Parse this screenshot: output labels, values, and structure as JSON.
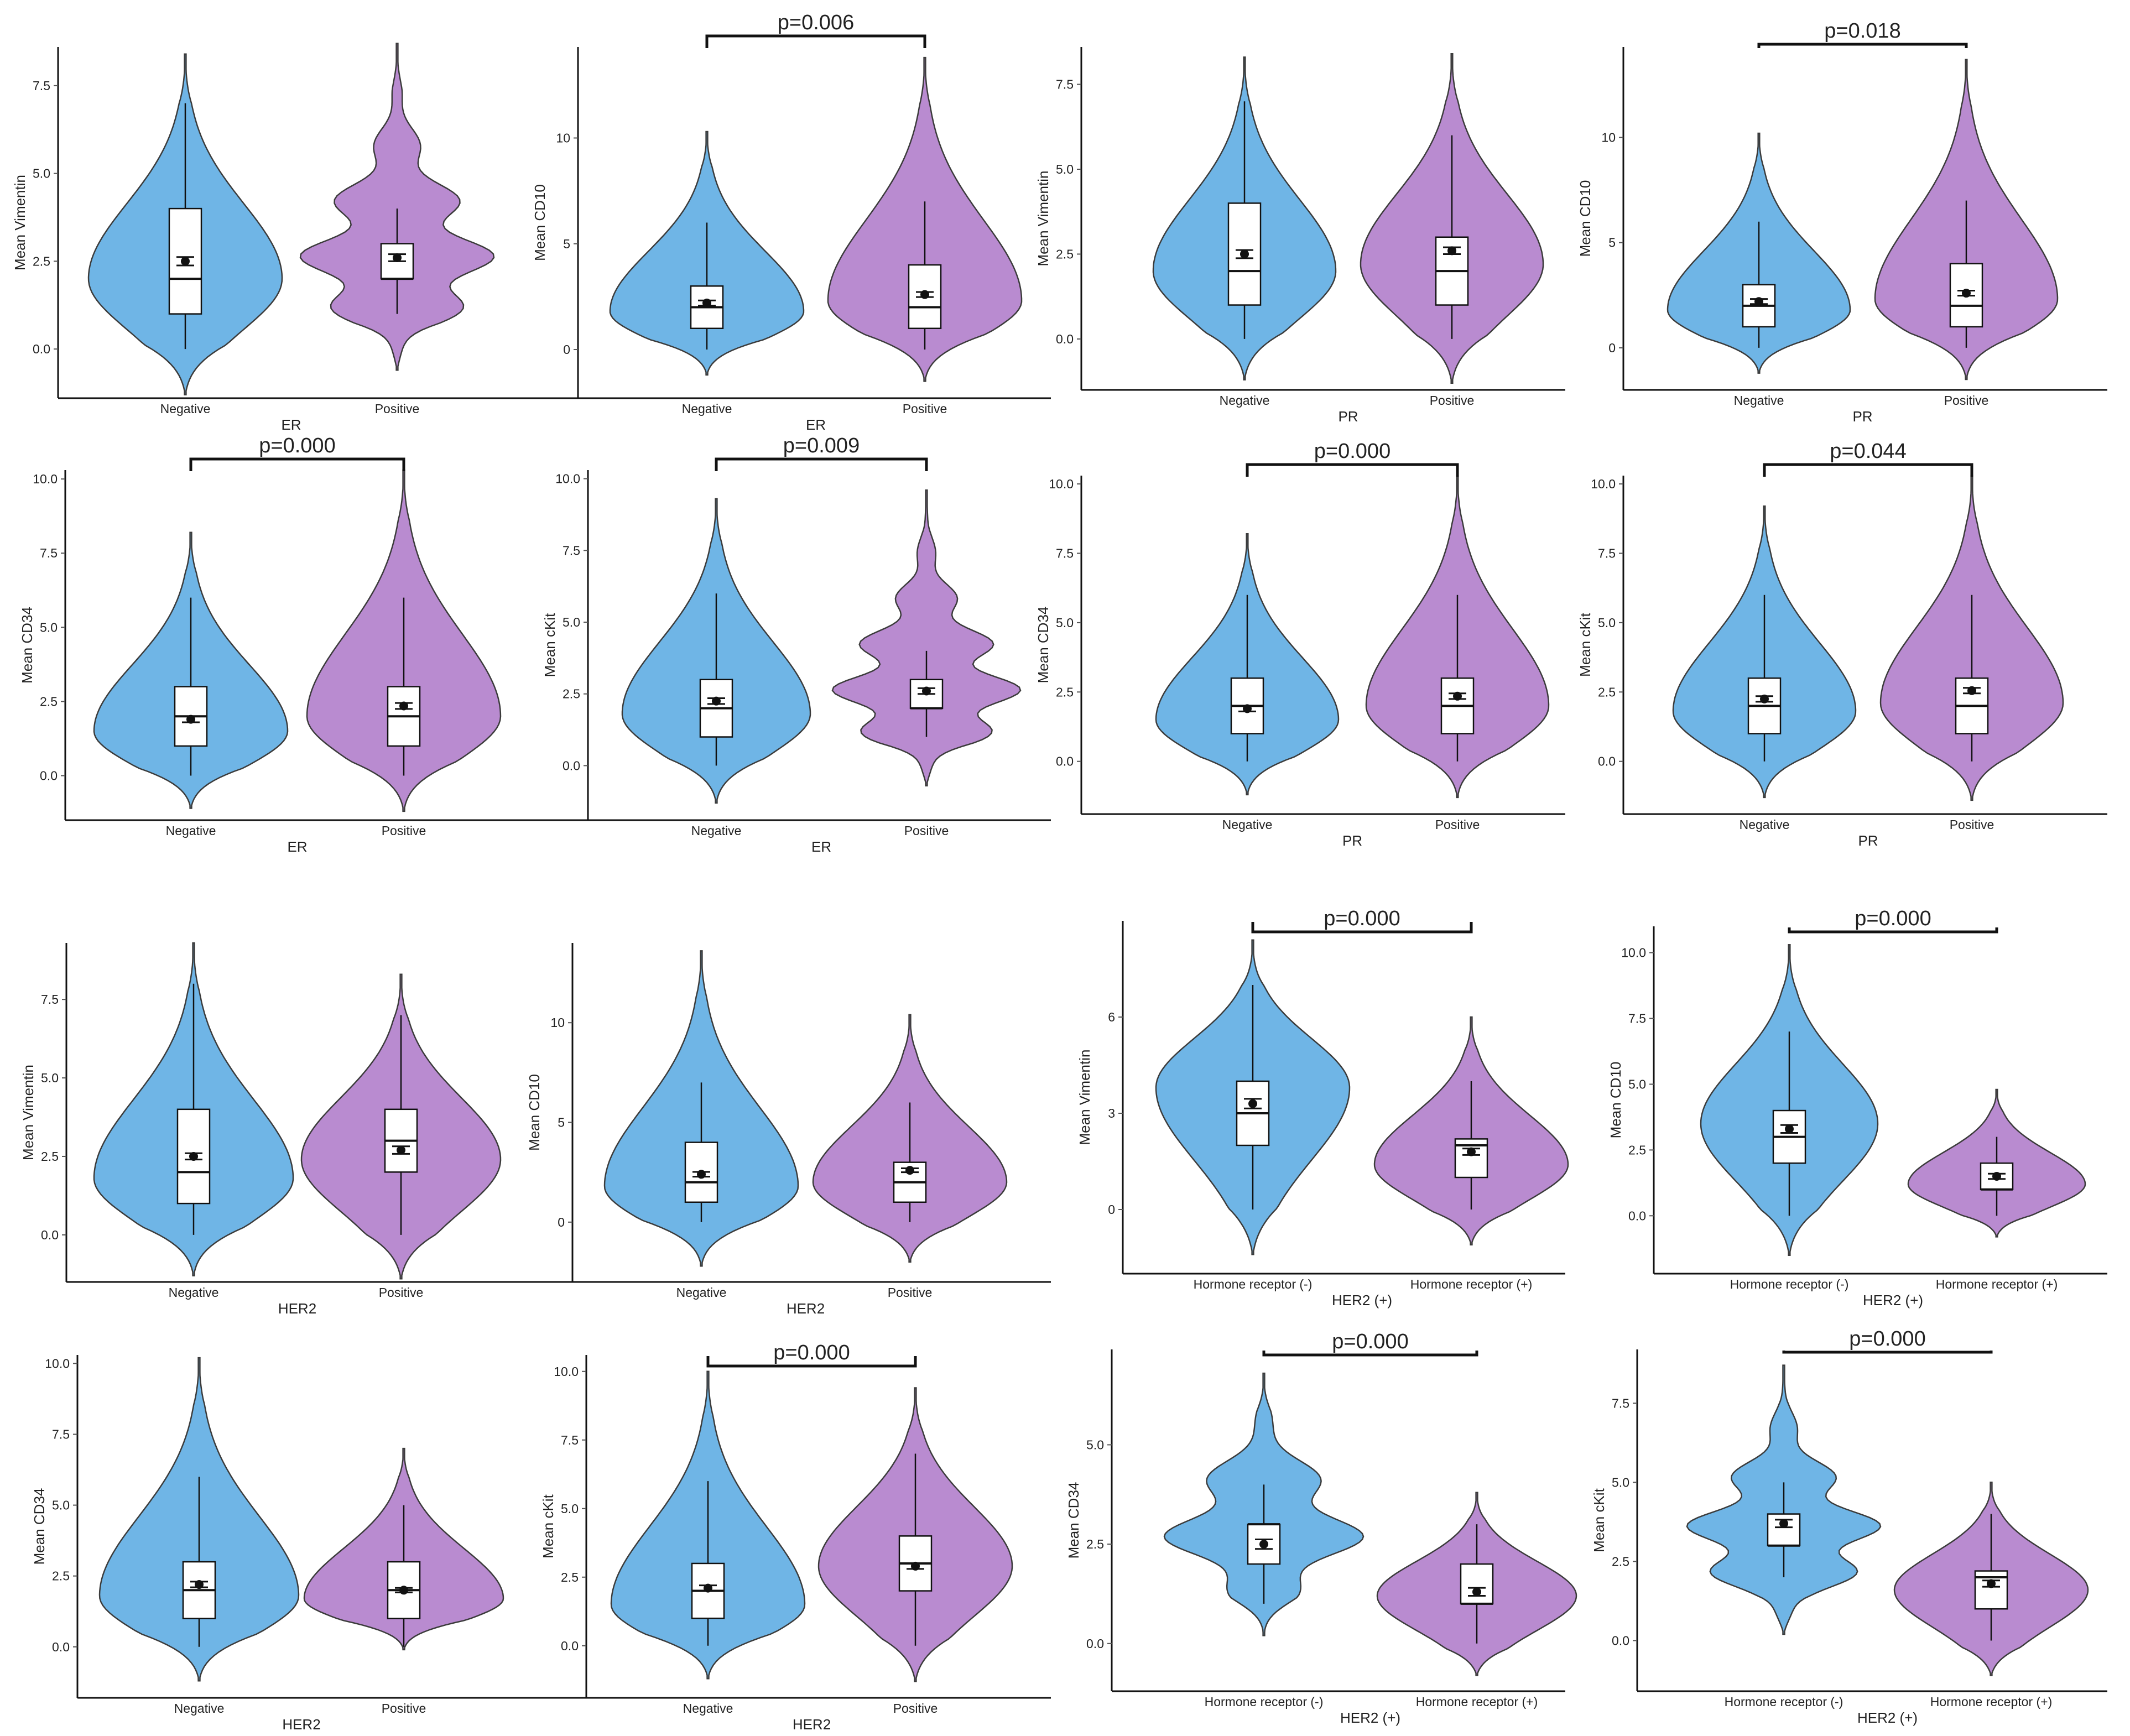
{
  "colors": {
    "negative": "#6fb5e6",
    "positive": "#b98bd0"
  },
  "chart_data": [
    {
      "type": "violin",
      "xlabel": "ER",
      "ylabel": "Mean Vimentin",
      "yticks": [
        0,
        2.5,
        5,
        7.5
      ],
      "ytick_labels": [
        "0.0",
        "2.5",
        "5.0",
        "7.5"
      ],
      "ylim": [
        -1.4,
        8.6
      ],
      "p_value": "",
      "groups": [
        {
          "name": "Negative",
          "color": "#6fb5e6",
          "min": 0,
          "q1": 1,
          "median": 2,
          "q3": 4,
          "max": 7,
          "mean": 2.5,
          "se": 0.12,
          "shape": "smooth",
          "vlow": -1.3,
          "vhigh": 8.4,
          "vmode": 2.0
        },
        {
          "name": "Positive",
          "color": "#b98bd0",
          "min": 1,
          "q1": 2,
          "median": 2,
          "q3": 3,
          "max": 4,
          "mean": 2.6,
          "se": 0.1,
          "shape": "wavy",
          "vlow": -0.6,
          "vhigh": 8.7,
          "vmode": 2.2
        }
      ]
    },
    {
      "type": "violin",
      "xlabel": "ER",
      "ylabel": "Mean CD10",
      "yticks": [
        0,
        5,
        10
      ],
      "ytick_labels": [
        "0",
        "5",
        "10"
      ],
      "ylim": [
        -2.3,
        14.3
      ],
      "p_value": "p=0.006",
      "groups": [
        {
          "name": "Negative",
          "color": "#6fb5e6",
          "min": 0,
          "q1": 1,
          "median": 2,
          "q3": 3,
          "max": 6,
          "mean": 2.2,
          "se": 0.12,
          "shape": "smooth",
          "vlow": -1.2,
          "vhigh": 10.3,
          "vmode": 1.8
        },
        {
          "name": "Positive",
          "color": "#b98bd0",
          "min": 0,
          "q1": 1,
          "median": 2,
          "q3": 4,
          "max": 7,
          "mean": 2.6,
          "se": 0.12,
          "shape": "smooth",
          "vlow": -1.5,
          "vhigh": 13.8,
          "vmode": 2.3
        }
      ]
    },
    {
      "type": "violin",
      "xlabel": "PR",
      "ylabel": "Mean Vimentin",
      "yticks": [
        0,
        2.5,
        5,
        7.5
      ],
      "ytick_labels": [
        "0.0",
        "2.5",
        "5.0",
        "7.5"
      ],
      "ylim": [
        -1.5,
        8.6
      ],
      "p_value": "",
      "groups": [
        {
          "name": "Negative",
          "color": "#6fb5e6",
          "min": 0,
          "q1": 1,
          "median": 2,
          "q3": 4,
          "max": 7,
          "mean": 2.5,
          "se": 0.12,
          "shape": "smooth",
          "vlow": -1.2,
          "vhigh": 8.3,
          "vmode": 2.0
        },
        {
          "name": "Positive",
          "color": "#b98bd0",
          "min": 0,
          "q1": 1,
          "median": 2,
          "q3": 3,
          "max": 6,
          "mean": 2.6,
          "se": 0.1,
          "shape": "smooth",
          "vlow": -1.3,
          "vhigh": 8.4,
          "vmode": 2.2
        }
      ]
    },
    {
      "type": "violin",
      "xlabel": "PR",
      "ylabel": "Mean CD10",
      "yticks": [
        0,
        5,
        10
      ],
      "ytick_labels": [
        "0",
        "5",
        "10"
      ],
      "ylim": [
        -2.0,
        14.3
      ],
      "p_value": "p=0.018",
      "groups": [
        {
          "name": "Negative",
          "color": "#6fb5e6",
          "min": 0,
          "q1": 1,
          "median": 2,
          "q3": 3,
          "max": 6,
          "mean": 2.2,
          "se": 0.12,
          "shape": "smooth",
          "vlow": -1.2,
          "vhigh": 10.2,
          "vmode": 1.8
        },
        {
          "name": "Positive",
          "color": "#b98bd0",
          "min": 0,
          "q1": 1,
          "median": 2,
          "q3": 4,
          "max": 7,
          "mean": 2.6,
          "se": 0.12,
          "shape": "smooth",
          "vlow": -1.5,
          "vhigh": 13.7,
          "vmode": 2.3
        }
      ]
    },
    {
      "type": "violin",
      "xlabel": "ER",
      "ylabel": "Mean CD34",
      "yticks": [
        0,
        2.5,
        5,
        7.5,
        10
      ],
      "ytick_labels": [
        "0.0",
        "2.5",
        "5.0",
        "7.5",
        "10.0"
      ],
      "ylim": [
        -1.5,
        10.3
      ],
      "p_value": "p=0.000",
      "groups": [
        {
          "name": "Negative",
          "color": "#6fb5e6",
          "min": 0,
          "q1": 1,
          "median": 2,
          "q3": 3,
          "max": 6,
          "mean": 1.9,
          "se": 0.1,
          "shape": "smooth",
          "vlow": -1.1,
          "vhigh": 8.2,
          "vmode": 1.5
        },
        {
          "name": "Positive",
          "color": "#b98bd0",
          "min": 0,
          "q1": 1,
          "median": 2,
          "q3": 3,
          "max": 6,
          "mean": 2.35,
          "se": 0.1,
          "shape": "smooth",
          "vlow": -1.2,
          "vhigh": 10.3,
          "vmode": 2.0
        }
      ]
    },
    {
      "type": "violin",
      "xlabel": "ER",
      "ylabel": "Mean cKit",
      "yticks": [
        0,
        2.5,
        5,
        7.5,
        10
      ],
      "ytick_labels": [
        "0.0",
        "2.5",
        "5.0",
        "7.5",
        "10.0"
      ],
      "ylim": [
        -1.9,
        10.3
      ],
      "p_value": "p=0.009",
      "groups": [
        {
          "name": "Negative",
          "color": "#6fb5e6",
          "min": 0,
          "q1": 1,
          "median": 2,
          "q3": 3,
          "max": 6,
          "mean": 2.25,
          "se": 0.1,
          "shape": "smooth",
          "vlow": -1.3,
          "vhigh": 9.3,
          "vmode": 1.8
        },
        {
          "name": "Positive",
          "color": "#b98bd0",
          "min": 1,
          "q1": 2,
          "median": 2,
          "q3": 3,
          "max": 4,
          "mean": 2.6,
          "se": 0.1,
          "shape": "wavy",
          "vlow": -0.7,
          "vhigh": 9.6,
          "vmode": 2.2
        }
      ]
    },
    {
      "type": "violin",
      "xlabel": "PR",
      "ylabel": "Mean CD34",
      "yticks": [
        0,
        2.5,
        5,
        7.5,
        10
      ],
      "ytick_labels": [
        "0.0",
        "2.5",
        "5.0",
        "7.5",
        "10.0"
      ],
      "ylim": [
        -1.9,
        10.3
      ],
      "p_value": "p=0.000",
      "groups": [
        {
          "name": "Negative",
          "color": "#6fb5e6",
          "min": 0,
          "q1": 1,
          "median": 2,
          "q3": 3,
          "max": 6,
          "mean": 1.9,
          "se": 0.1,
          "shape": "smooth",
          "vlow": -1.2,
          "vhigh": 8.2,
          "vmode": 1.5
        },
        {
          "name": "Positive",
          "color": "#b98bd0",
          "min": 0,
          "q1": 1,
          "median": 2,
          "q3": 3,
          "max": 6,
          "mean": 2.35,
          "se": 0.1,
          "shape": "smooth",
          "vlow": -1.3,
          "vhigh": 10.3,
          "vmode": 2.0
        }
      ]
    },
    {
      "type": "violin",
      "xlabel": "PR",
      "ylabel": "Mean cKit",
      "yticks": [
        0,
        2.5,
        5,
        7.5,
        10
      ],
      "ytick_labels": [
        "0.0",
        "2.5",
        "5.0",
        "7.5",
        "10.0"
      ],
      "ylim": [
        -1.9,
        10.3
      ],
      "p_value": "p=0.044",
      "groups": [
        {
          "name": "Negative",
          "color": "#6fb5e6",
          "min": 0,
          "q1": 1,
          "median": 2,
          "q3": 3,
          "max": 6,
          "mean": 2.25,
          "se": 0.1,
          "shape": "smooth",
          "vlow": -1.3,
          "vhigh": 9.2,
          "vmode": 1.8
        },
        {
          "name": "Positive",
          "color": "#b98bd0",
          "min": 0,
          "q1": 1,
          "median": 2,
          "q3": 3,
          "max": 6,
          "mean": 2.55,
          "se": 0.1,
          "shape": "smooth",
          "vlow": -1.4,
          "vhigh": 10.3,
          "vmode": 2.1
        }
      ]
    },
    {
      "type": "violin",
      "xlabel": "HER2",
      "ylabel": "Mean Vimentin",
      "yticks": [
        0,
        2.5,
        5,
        7.5
      ],
      "ytick_labels": [
        "0.0",
        "2.5",
        "5.0",
        "7.5"
      ],
      "ylim": [
        -1.5,
        9.3
      ],
      "p_value": "",
      "groups": [
        {
          "name": "Negative",
          "color": "#6fb5e6",
          "min": 0,
          "q1": 1,
          "median": 2,
          "q3": 4,
          "max": 8,
          "mean": 2.5,
          "se": 0.1,
          "shape": "smooth",
          "vlow": -1.3,
          "vhigh": 9.3,
          "vmode": 1.8
        },
        {
          "name": "Positive",
          "color": "#b98bd0",
          "min": 0,
          "q1": 2,
          "median": 3,
          "q3": 4,
          "max": 7,
          "mean": 2.7,
          "se": 0.12,
          "shape": "smooth",
          "vlow": -1.4,
          "vhigh": 8.3,
          "vmode": 2.4
        }
      ]
    },
    {
      "type": "violin",
      "xlabel": "HER2",
      "ylabel": "Mean CD10",
      "yticks": [
        0,
        5,
        10
      ],
      "ytick_labels": [
        "0",
        "5",
        "10"
      ],
      "ylim": [
        -3.0,
        14.0
      ],
      "p_value": "",
      "groups": [
        {
          "name": "Negative",
          "color": "#6fb5e6",
          "min": 0,
          "q1": 1,
          "median": 2,
          "q3": 4,
          "max": 7,
          "mean": 2.4,
          "se": 0.12,
          "shape": "smooth",
          "vlow": -2.2,
          "vhigh": 13.6,
          "vmode": 1.8
        },
        {
          "name": "Positive",
          "color": "#b98bd0",
          "min": 0,
          "q1": 1,
          "median": 2,
          "q3": 3,
          "max": 6,
          "mean": 2.6,
          "se": 0.1,
          "shape": "smooth",
          "vlow": -2.0,
          "vhigh": 10.4,
          "vmode": 2.0
        }
      ]
    },
    {
      "type": "violin",
      "xlabel": "HER2 (+)",
      "ylabel": "Mean Vimentin",
      "yticks": [
        0,
        3,
        6
      ],
      "ytick_labels": [
        "0",
        "3",
        "6"
      ],
      "ylim": [
        -2.0,
        9.0
      ],
      "p_value": "p=0.000",
      "groups": [
        {
          "name": "Hormone receptor (-)",
          "color": "#6fb5e6",
          "min": 0,
          "q1": 2,
          "median": 3,
          "q3": 4,
          "max": 7,
          "mean": 3.3,
          "se": 0.15,
          "shape": "smooth",
          "vlow": -1.4,
          "vhigh": 8.4,
          "vmode": 3.8
        },
        {
          "name": "Hormone receptor (+)",
          "color": "#b98bd0",
          "min": 0,
          "q1": 1,
          "median": 2,
          "q3": 2.2,
          "max": 4,
          "mean": 1.8,
          "se": 0.1,
          "shape": "smooth",
          "vlow": -1.1,
          "vhigh": 6.0,
          "vmode": 1.4
        }
      ]
    },
    {
      "type": "violin",
      "xlabel": "HER2 (+)",
      "ylabel": "Mean CD10",
      "yticks": [
        0,
        2.5,
        5,
        7.5,
        10
      ],
      "ytick_labels": [
        "0.0",
        "2.5",
        "5.0",
        "7.5",
        "10.0"
      ],
      "ylim": [
        -2.2,
        11.0
      ],
      "p_value": "p=0.000",
      "groups": [
        {
          "name": "Hormone receptor (-)",
          "color": "#6fb5e6",
          "min": 0,
          "q1": 2,
          "median": 3,
          "q3": 4,
          "max": 7,
          "mean": 3.3,
          "se": 0.15,
          "shape": "smooth",
          "vlow": -1.5,
          "vhigh": 10.3,
          "vmode": 3.5
        },
        {
          "name": "Hormone receptor (+)",
          "color": "#b98bd0",
          "min": 0,
          "q1": 1,
          "median": 1,
          "q3": 2,
          "max": 3,
          "mean": 1.5,
          "se": 0.1,
          "shape": "smooth",
          "vlow": -0.8,
          "vhigh": 4.8,
          "vmode": 1.2
        }
      ]
    },
    {
      "type": "violin",
      "xlabel": "HER2",
      "ylabel": "Mean CD34",
      "yticks": [
        0,
        2.5,
        5,
        7.5,
        10
      ],
      "ytick_labels": [
        "0.0",
        "2.5",
        "5.0",
        "7.5",
        "10.0"
      ],
      "ylim": [
        -1.8,
        10.3
      ],
      "p_value": "",
      "groups": [
        {
          "name": "Negative",
          "color": "#6fb5e6",
          "min": 0,
          "q1": 1,
          "median": 2,
          "q3": 3,
          "max": 6,
          "mean": 2.2,
          "se": 0.1,
          "shape": "smooth",
          "vlow": -1.2,
          "vhigh": 10.2,
          "vmode": 1.8
        },
        {
          "name": "Positive",
          "color": "#b98bd0",
          "min": 0,
          "q1": 1,
          "median": 2,
          "q3": 3,
          "max": 5,
          "mean": 2.0,
          "se": 0.08,
          "shape": "smooth",
          "vlow": -0.1,
          "vhigh": 7.0,
          "vmode": 1.7
        }
      ]
    },
    {
      "type": "violin",
      "xlabel": "HER2",
      "ylabel": "Mean cKit",
      "yticks": [
        0,
        2.5,
        5,
        7.5,
        10
      ],
      "ytick_labels": [
        "0.0",
        "2.5",
        "5.0",
        "7.5",
        "10.0"
      ],
      "ylim": [
        -1.9,
        10.6
      ],
      "p_value": "p=0.000",
      "groups": [
        {
          "name": "Negative",
          "color": "#6fb5e6",
          "min": 0,
          "q1": 1,
          "median": 2,
          "q3": 3,
          "max": 6,
          "mean": 2.1,
          "se": 0.1,
          "shape": "smooth",
          "vlow": -1.2,
          "vhigh": 10.0,
          "vmode": 1.5
        },
        {
          "name": "Positive",
          "color": "#b98bd0",
          "min": 0,
          "q1": 2,
          "median": 3,
          "q3": 4,
          "max": 7,
          "mean": 2.9,
          "se": 0.1,
          "shape": "smooth",
          "vlow": -1.3,
          "vhigh": 9.4,
          "vmode": 2.9
        }
      ]
    },
    {
      "type": "violin",
      "xlabel": "HER2 (+)",
      "ylabel": "Mean CD34",
      "yticks": [
        0,
        2.5,
        5
      ],
      "ytick_labels": [
        "0.0",
        "2.5",
        "5.0"
      ],
      "ylim": [
        -1.2,
        7.4
      ],
      "p_value": "p=0.000",
      "groups": [
        {
          "name": "Hormone receptor (-)",
          "color": "#6fb5e6",
          "min": 1,
          "q1": 2,
          "median": 3,
          "q3": 3,
          "max": 4,
          "mean": 2.5,
          "se": 0.12,
          "shape": "wavy",
          "vlow": 0.2,
          "vhigh": 6.8,
          "vmode": 2.8
        },
        {
          "name": "Hormone receptor (+)",
          "color": "#b98bd0",
          "min": 0,
          "q1": 1,
          "median": 1,
          "q3": 2,
          "max": 3,
          "mean": 1.3,
          "se": 0.1,
          "shape": "smooth",
          "vlow": -0.8,
          "vhigh": 3.8,
          "vmode": 1.2
        }
      ]
    },
    {
      "type": "violin",
      "xlabel": "HER2 (+)",
      "ylabel": "Mean cKit",
      "yticks": [
        0,
        2.5,
        5,
        7.5
      ],
      "ytick_labels": [
        "0.0",
        "2.5",
        "5.0",
        "7.5"
      ],
      "ylim": [
        -1.6,
        9.2
      ],
      "p_value": "p=0.000",
      "groups": [
        {
          "name": "Hormone receptor (-)",
          "color": "#6fb5e6",
          "min": 2,
          "q1": 3,
          "median": 3,
          "q3": 4,
          "max": 5,
          "mean": 3.7,
          "se": 0.12,
          "shape": "wavy",
          "vlow": 0.2,
          "vhigh": 8.7,
          "vmode": 3.1
        },
        {
          "name": "Hormone receptor (+)",
          "color": "#b98bd0",
          "min": 0,
          "q1": 1,
          "median": 2,
          "q3": 2.2,
          "max": 4,
          "mean": 1.8,
          "se": 0.1,
          "shape": "smooth",
          "vlow": -1.1,
          "vhigh": 5.0,
          "vmode": 1.6
        }
      ]
    }
  ]
}
